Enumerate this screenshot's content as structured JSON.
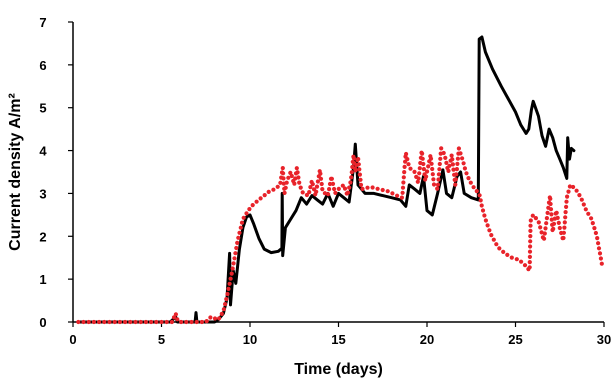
{
  "chart_data": {
    "type": "line",
    "xlabel": "Time (days)",
    "ylabel": "Current density A/m²",
    "xlim": [
      0,
      30
    ],
    "ylim": [
      0,
      7
    ],
    "xticks": [
      "0",
      "5",
      "10",
      "15",
      "20",
      "25",
      "30"
    ],
    "yticks": [
      "0",
      "1",
      "2",
      "3",
      "4",
      "5",
      "6",
      "7"
    ],
    "grid": false,
    "legend": "none",
    "series": [
      {
        "style": "solid",
        "color": "#000000",
        "points": [
          [
            0.3,
            0
          ],
          [
            5.5,
            0
          ],
          [
            5.8,
            0.12
          ],
          [
            5.9,
            0
          ],
          [
            6.9,
            0
          ],
          [
            6.95,
            0.22
          ],
          [
            7.0,
            0
          ],
          [
            8.0,
            0
          ],
          [
            8.2,
            0.05
          ],
          [
            8.5,
            0.2
          ],
          [
            8.7,
            0.55
          ],
          [
            8.85,
            1.6
          ],
          [
            8.9,
            0.4
          ],
          [
            9.05,
            1.2
          ],
          [
            9.2,
            0.9
          ],
          [
            9.4,
            1.7
          ],
          [
            9.6,
            2.2
          ],
          [
            9.8,
            2.45
          ],
          [
            10.0,
            2.5
          ],
          [
            10.2,
            2.3
          ],
          [
            10.5,
            1.95
          ],
          [
            10.8,
            1.7
          ],
          [
            11.2,
            1.62
          ],
          [
            11.6,
            1.65
          ],
          [
            11.8,
            1.72
          ],
          [
            11.82,
            3.0
          ],
          [
            11.85,
            1.55
          ],
          [
            12.0,
            2.2
          ],
          [
            12.3,
            2.4
          ],
          [
            12.6,
            2.6
          ],
          [
            12.9,
            2.9
          ],
          [
            13.2,
            2.75
          ],
          [
            13.5,
            2.95
          ],
          [
            13.8,
            2.85
          ],
          [
            14.1,
            2.75
          ],
          [
            14.4,
            3.0
          ],
          [
            14.7,
            2.7
          ],
          [
            15.0,
            3.0
          ],
          [
            15.3,
            2.9
          ],
          [
            15.6,
            2.8
          ],
          [
            15.85,
            3.6
          ],
          [
            15.95,
            4.15
          ],
          [
            16.1,
            3.2
          ],
          [
            16.5,
            3.0
          ],
          [
            17.0,
            3.0
          ],
          [
            17.5,
            2.95
          ],
          [
            18.0,
            2.9
          ],
          [
            18.5,
            2.85
          ],
          [
            18.8,
            2.7
          ],
          [
            19.0,
            3.2
          ],
          [
            19.3,
            3.1
          ],
          [
            19.6,
            3.0
          ],
          [
            19.8,
            3.4
          ],
          [
            20.0,
            2.6
          ],
          [
            20.3,
            2.5
          ],
          [
            20.6,
            3.0
          ],
          [
            20.9,
            3.55
          ],
          [
            21.1,
            3.0
          ],
          [
            21.4,
            2.9
          ],
          [
            21.7,
            3.4
          ],
          [
            21.9,
            3.5
          ],
          [
            22.1,
            3.0
          ],
          [
            22.5,
            2.9
          ],
          [
            22.9,
            2.85
          ],
          [
            22.95,
            6.6
          ],
          [
            23.1,
            6.65
          ],
          [
            23.3,
            6.3
          ],
          [
            23.7,
            5.9
          ],
          [
            24.2,
            5.5
          ],
          [
            24.6,
            5.2
          ],
          [
            25.0,
            4.9
          ],
          [
            25.3,
            4.6
          ],
          [
            25.6,
            4.4
          ],
          [
            25.75,
            4.5
          ],
          [
            25.9,
            4.95
          ],
          [
            26.0,
            5.15
          ],
          [
            26.3,
            4.8
          ],
          [
            26.5,
            4.35
          ],
          [
            26.7,
            4.1
          ],
          [
            26.9,
            4.5
          ],
          [
            27.1,
            4.3
          ],
          [
            27.3,
            4.0
          ],
          [
            27.5,
            3.8
          ],
          [
            27.7,
            3.6
          ],
          [
            27.9,
            3.35
          ],
          [
            27.95,
            4.3
          ],
          [
            28.05,
            3.8
          ],
          [
            28.15,
            4.05
          ],
          [
            28.3,
            4.0
          ]
        ]
      },
      {
        "style": "dotted",
        "color": "#e8232a",
        "points": [
          [
            0.3,
            0
          ],
          [
            5.6,
            0
          ],
          [
            5.8,
            0.2
          ],
          [
            5.9,
            0.05
          ],
          [
            6.0,
            0
          ],
          [
            7.5,
            0
          ],
          [
            7.8,
            0.12
          ],
          [
            8.2,
            0.05
          ],
          [
            8.5,
            0.25
          ],
          [
            8.7,
            0.6
          ],
          [
            9.0,
            1.2
          ],
          [
            9.3,
            1.9
          ],
          [
            9.6,
            2.4
          ],
          [
            9.9,
            2.6
          ],
          [
            10.2,
            2.75
          ],
          [
            10.5,
            2.85
          ],
          [
            10.8,
            2.95
          ],
          [
            11.1,
            3.05
          ],
          [
            11.4,
            3.1
          ],
          [
            11.7,
            3.2
          ],
          [
            11.85,
            3.6
          ],
          [
            11.95,
            3.0
          ],
          [
            12.1,
            3.3
          ],
          [
            12.3,
            3.5
          ],
          [
            12.5,
            3.2
          ],
          [
            12.65,
            3.6
          ],
          [
            12.8,
            3.2
          ],
          [
            13.0,
            3.0
          ],
          [
            13.3,
            2.95
          ],
          [
            13.5,
            3.3
          ],
          [
            13.7,
            2.95
          ],
          [
            13.95,
            3.55
          ],
          [
            14.1,
            3.05
          ],
          [
            14.4,
            2.95
          ],
          [
            14.6,
            3.4
          ],
          [
            14.8,
            3.0
          ],
          [
            15.0,
            3.1
          ],
          [
            15.3,
            3.2
          ],
          [
            15.5,
            2.95
          ],
          [
            15.7,
            3.3
          ],
          [
            15.85,
            3.9
          ],
          [
            15.95,
            3.5
          ],
          [
            16.1,
            3.85
          ],
          [
            16.3,
            3.1
          ],
          [
            16.8,
            3.15
          ],
          [
            17.3,
            3.1
          ],
          [
            17.8,
            3.05
          ],
          [
            18.3,
            2.95
          ],
          [
            18.6,
            2.9
          ],
          [
            18.8,
            3.95
          ],
          [
            19.0,
            3.6
          ],
          [
            19.3,
            3.5
          ],
          [
            19.5,
            3.25
          ],
          [
            19.7,
            4.0
          ],
          [
            19.9,
            3.3
          ],
          [
            20.2,
            3.9
          ],
          [
            20.4,
            3.2
          ],
          [
            20.6,
            3.1
          ],
          [
            20.8,
            4.05
          ],
          [
            21.0,
            3.9
          ],
          [
            21.2,
            3.5
          ],
          [
            21.4,
            3.9
          ],
          [
            21.6,
            3.2
          ],
          [
            21.8,
            4.05
          ],
          [
            22.0,
            3.8
          ],
          [
            22.2,
            3.5
          ],
          [
            22.4,
            3.3
          ],
          [
            22.7,
            3.1
          ],
          [
            22.95,
            3.0
          ],
          [
            23.1,
            2.7
          ],
          [
            23.3,
            2.4
          ],
          [
            23.6,
            2.05
          ],
          [
            24.0,
            1.75
          ],
          [
            24.4,
            1.6
          ],
          [
            24.8,
            1.5
          ],
          [
            25.2,
            1.45
          ],
          [
            25.6,
            1.3
          ],
          [
            25.8,
            1.2
          ],
          [
            25.85,
            2.35
          ],
          [
            26.0,
            2.5
          ],
          [
            26.3,
            2.35
          ],
          [
            26.6,
            1.9
          ],
          [
            26.8,
            2.5
          ],
          [
            26.95,
            2.95
          ],
          [
            27.1,
            2.1
          ],
          [
            27.3,
            2.6
          ],
          [
            27.5,
            2.2
          ],
          [
            27.7,
            1.9
          ],
          [
            27.9,
            2.9
          ],
          [
            28.1,
            3.2
          ],
          [
            28.4,
            3.1
          ],
          [
            28.7,
            2.9
          ],
          [
            29.0,
            2.6
          ],
          [
            29.3,
            2.4
          ],
          [
            29.6,
            2.0
          ],
          [
            29.9,
            1.3
          ]
        ]
      }
    ]
  }
}
